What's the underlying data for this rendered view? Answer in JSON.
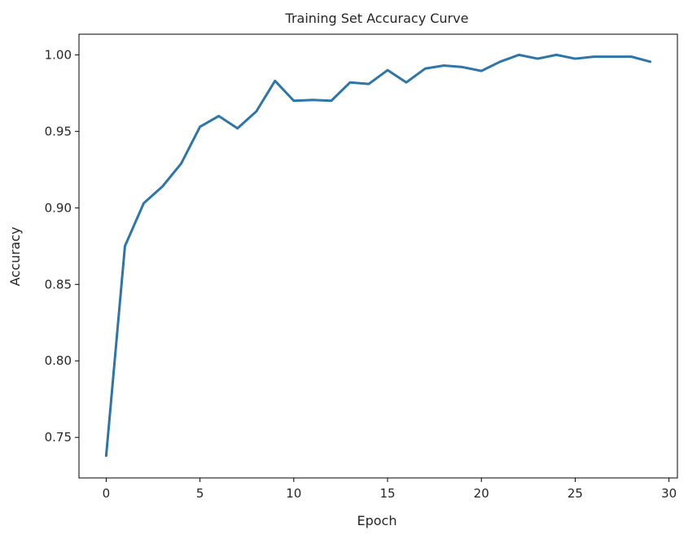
{
  "chart_data": {
    "type": "line",
    "title": "Training Set Accuracy Curve",
    "xlabel": "Epoch",
    "ylabel": "Accuracy",
    "xlim": [
      -1.45,
      30.45
    ],
    "ylim": [
      0.7235,
      1.0135
    ],
    "xticks": [
      0,
      5,
      10,
      15,
      20,
      25,
      30
    ],
    "xtick_labels": [
      "0",
      "5",
      "10",
      "15",
      "20",
      "25",
      "30"
    ],
    "yticks": [
      0.75,
      0.8,
      0.85,
      0.9,
      0.95,
      1.0
    ],
    "ytick_labels": [
      "0.75",
      "0.80",
      "0.85",
      "0.90",
      "0.95",
      "1.00"
    ],
    "grid": false,
    "line_color": "#2e75a8",
    "series": [
      {
        "x": [
          0,
          1,
          2,
          3,
          4,
          5,
          6,
          7,
          8,
          9,
          10,
          11,
          12,
          13,
          14,
          15,
          16,
          17,
          18,
          19,
          20,
          21,
          22,
          23,
          24,
          25,
          26,
          27,
          28,
          29
        ],
        "values": [
          0.738,
          0.875,
          0.903,
          0.914,
          0.929,
          0.953,
          0.96,
          0.952,
          0.963,
          0.983,
          0.97,
          0.9705,
          0.97,
          0.982,
          0.981,
          0.99,
          0.982,
          0.991,
          0.993,
          0.992,
          0.9895,
          0.9955,
          1.0,
          0.9975,
          1.0,
          0.9975,
          0.9988,
          0.9988,
          0.9988,
          0.9955
        ]
      }
    ]
  }
}
